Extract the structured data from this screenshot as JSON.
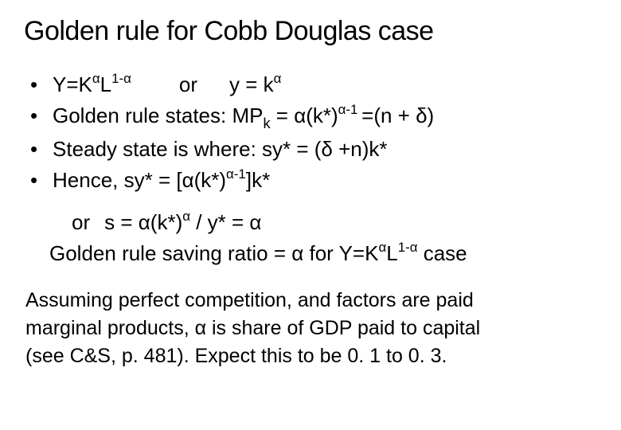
{
  "title": "Golden rule for Cobb Douglas case",
  "bullets": {
    "b1": {
      "t1": "Y=K",
      "sup1": "α",
      "t2": "L",
      "sup2": "1-α",
      "or": "or",
      "t3": "y = k",
      "sup3": "α"
    },
    "b2": {
      "t1": "Golden rule states: MP",
      "sub1": "k",
      "t2": " = α(k*)",
      "sup1": "α-1 ",
      "t3": "=(n + δ)"
    },
    "b3": {
      "t1": "Steady state is where:   sy* = (δ +n)k*"
    },
    "b4": {
      "t1": "Hence, sy* = [α(k*)",
      "sup1": "α-1",
      "t2": "]k*"
    }
  },
  "indent": {
    "l1": {
      "t1": "or",
      "t2": "s = α(k*)",
      "sup1": "α",
      "t3": " /  y*  =  α"
    },
    "l2": {
      "t1": "Golden rule saving ratio = α for Y=K",
      "sup1": "α",
      "t2": "L",
      "sup2": "1-α",
      "t3": " case"
    }
  },
  "footer": {
    "l1": "Assuming perfect competition, and factors are paid",
    "l2": "marginal products, α is share of GDP paid to capital",
    "l3": "(see C&S, p. 481). Expect this to be 0. 1 to 0. 3."
  },
  "style": {
    "background_color": "#ffffff",
    "text_color": "#000000",
    "title_fontsize": 34,
    "body_fontsize": 26,
    "footer_fontsize": 25,
    "font_family": "Arial"
  }
}
